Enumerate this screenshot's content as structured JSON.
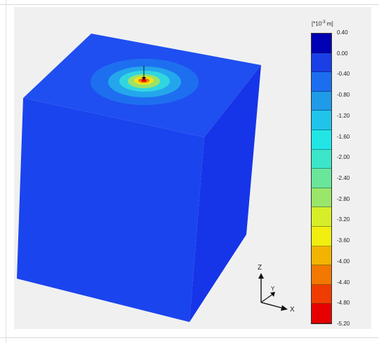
{
  "legend": {
    "title_prefix": "[*10",
    "title_exp": "-3",
    "title_suffix": " m]",
    "labels": [
      "0.40",
      "0.00",
      "-0.40",
      "-0.80",
      "-1.20",
      "-1.60",
      "-2.00",
      "-2.40",
      "-2.80",
      "-3.20",
      "-3.60",
      "-4.00",
      "-4.40",
      "-4.80",
      "-5.20"
    ],
    "colors": [
      "#0000b4",
      "#1a3fe6",
      "#1c6ef0",
      "#1f9be8",
      "#20c4ea",
      "#22e6e6",
      "#3ce6c8",
      "#6ae69a",
      "#9ae66a",
      "#d6ee28",
      "#f2ee10",
      "#f2b400",
      "#f27800",
      "#f03c00",
      "#e60000"
    ]
  },
  "model": {
    "top_color": "#1f4ff0",
    "front_color": "#1a44ee",
    "side_color": "#1635e8",
    "contour_colors": [
      "#1e6ff0",
      "#24a6ec",
      "#30d6e0",
      "#9be26a",
      "#f4e414",
      "#f08010",
      "#e80000"
    ]
  },
  "axes": {
    "z_label": "Z",
    "y_label": "Y",
    "x_label": "X"
  }
}
